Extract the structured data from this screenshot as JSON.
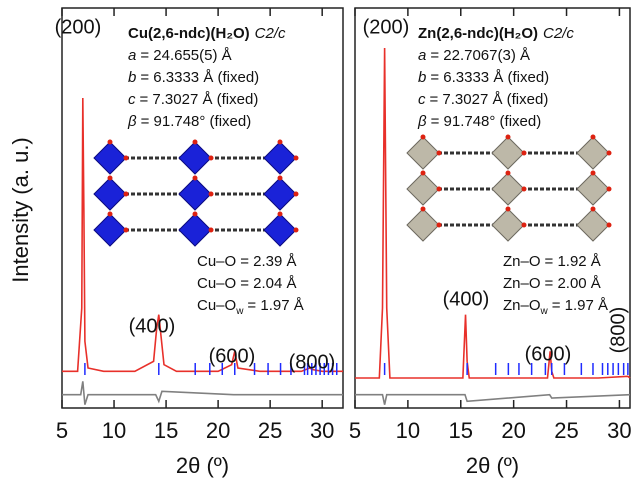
{
  "chart_data": [
    {
      "type": "line",
      "y_label": "Intensity (a. u.)",
      "x_label": "2θ (º)",
      "xlim": [
        5,
        32
      ],
      "xticks": [
        5,
        10,
        15,
        20,
        25,
        30
      ],
      "ylim": [
        0,
        120
      ],
      "series": [
        {
          "color": "#e8302a",
          "x": [
            5,
            6.5,
            6.9,
            7.0,
            7.1,
            7.2,
            7.5,
            9,
            12,
            13.8,
            14.1,
            14.3,
            14.5,
            14.8,
            16,
            20,
            21.3,
            21.6,
            21.9,
            24,
            28,
            28.8,
            29.1,
            30,
            32
          ],
          "values": [
            11,
            11,
            30,
            93,
            60,
            20,
            12,
            11,
            11,
            14,
            24,
            28,
            22,
            13,
            11,
            11,
            13,
            17,
            12,
            11,
            11,
            12,
            11.5,
            11,
            11
          ]
        },
        {
          "color": "#808080",
          "x": [
            5,
            6.8,
            7.0,
            7.2,
            7.5,
            14,
            14.3,
            14.6,
            21.5,
            32
          ],
          "values": [
            4,
            4,
            8,
            1,
            4,
            4,
            2,
            5,
            4,
            4
          ]
        }
      ],
      "bragg": {
        "color": "#1f2bff",
        "x": [
          7.2,
          14.3,
          17.8,
          19.2,
          20.4,
          21.6,
          23.5,
          24.8,
          26.0,
          27.0,
          28.3,
          28.6,
          29.0,
          29.4,
          29.8,
          30.2,
          30.6,
          31.0,
          31.4
        ]
      },
      "annotations": [
        "(200)",
        "(400)",
        "(600)",
        "(800)"
      ],
      "phase": {
        "formula": "Cu(2,6-ndc)(H₂O)",
        "space_group": "C2/c"
      },
      "lattice": [
        {
          "symbol": "a",
          "value": "= 24.655(5) Å"
        },
        {
          "symbol": "b",
          "value": "= 6.3333 Å (fixed)"
        },
        {
          "symbol": "c",
          "value": "= 7.3027 Å (fixed)"
        },
        {
          "symbol": "β",
          "value": "= 91.748° (fixed)"
        }
      ],
      "bonds": [
        {
          "label": "Cu–O",
          "length": "= 2.39 Å"
        },
        {
          "label": "Cu–O",
          "length": "= 2.04 Å"
        },
        {
          "label": "Cu–O",
          "subscript": "w",
          "length": "= 1.97 Å"
        }
      ]
    },
    {
      "type": "line",
      "x_label": "2θ (º)",
      "xlim": [
        5,
        31
      ],
      "xticks": [
        5,
        10,
        15,
        20,
        25,
        30
      ],
      "ylim": [
        0,
        120
      ],
      "series": [
        {
          "color": "#e8302a",
          "x": [
            5,
            7.3,
            7.6,
            7.8,
            8.0,
            8.3,
            10,
            15.2,
            15.45,
            15.6,
            15.8,
            16.2,
            20,
            23.2,
            23.45,
            23.6,
            23.8,
            24.2,
            28,
            30.8,
            31
          ],
          "values": [
            9,
            9,
            30,
            108,
            30,
            9,
            9,
            9,
            28,
            14,
            9,
            9,
            9,
            9,
            17,
            11,
            9,
            9,
            9,
            9.5,
            9
          ]
        },
        {
          "color": "#808080",
          "x": [
            5,
            7.6,
            7.8,
            8.0,
            15.4,
            15.6,
            23.4,
            23.6,
            31
          ],
          "values": [
            4,
            4,
            1,
            4,
            4,
            2,
            4,
            3,
            4
          ]
        }
      ],
      "bragg": {
        "color": "#1f2bff",
        "x": [
          7.8,
          15.6,
          18.3,
          19.5,
          20.5,
          21.7,
          23.0,
          23.6,
          24.8,
          26.4,
          27.5,
          28.4,
          28.9,
          29.4,
          29.9,
          30.4,
          30.8
        ]
      },
      "annotations": [
        "(200)",
        "(400)",
        "(600)",
        "(800)"
      ],
      "phase": {
        "formula": "Zn(2,6-ndc)(H₂O)",
        "space_group": "C2/c"
      },
      "lattice": [
        {
          "symbol": "a",
          "value": "= 22.7067(3) Å"
        },
        {
          "symbol": "b",
          "value": "= 6.3333 Å (fixed)"
        },
        {
          "symbol": "c",
          "value": "= 7.3027 Å (fixed)"
        },
        {
          "symbol": "β",
          "value": "= 91.748° (fixed)"
        }
      ],
      "bonds": [
        {
          "label": "Zn–O",
          "length": "= 1.92 Å"
        },
        {
          "label": "Zn–O",
          "length": "= 2.00 Å"
        },
        {
          "label": "Zn–O",
          "subscript": "w",
          "length": "= 1.97 Å"
        }
      ]
    }
  ]
}
